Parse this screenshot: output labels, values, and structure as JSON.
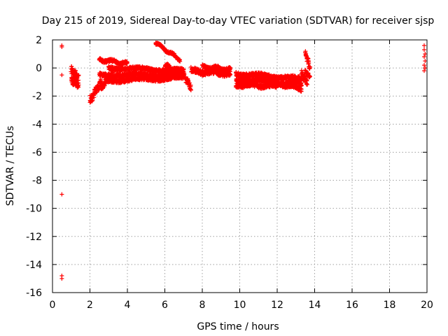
{
  "chart_data": {
    "type": "scatter",
    "title": "Day 215 of 2019, Sidereal Day-to-day VTEC variation (SDTVAR) for receiver sjsp",
    "xlabel": "GPS time / hours",
    "ylabel": "SDTVAR / TECUs",
    "xlim": [
      0,
      20
    ],
    "ylim": [
      -16,
      2
    ],
    "xticks": [
      "0",
      "2",
      "4",
      "6",
      "8",
      "10",
      "12",
      "14",
      "16",
      "18",
      "20"
    ],
    "yticks": [
      "2",
      "0",
      "-2",
      "-4",
      "-6",
      "-8",
      "-10",
      "-12",
      "-14",
      "-16"
    ],
    "grid": true,
    "marker": "+",
    "color": "#ff0000",
    "points": [
      [
        0.5,
        1.6
      ],
      [
        0.5,
        1.5
      ],
      [
        0.5,
        -0.5
      ],
      [
        0.5,
        -9.0
      ],
      [
        0.5,
        -14.8
      ],
      [
        0.5,
        -15.0
      ],
      [
        19.85,
        1.6
      ],
      [
        19.85,
        1.3
      ],
      [
        19.9,
        1.0
      ],
      [
        19.85,
        0.8
      ],
      [
        19.9,
        0.5
      ],
      [
        19.85,
        0.2
      ],
      [
        19.9,
        0.0
      ],
      [
        19.85,
        -0.2
      ]
    ],
    "segments": [
      {
        "x": [
          1.0,
          1.4
        ],
        "y": [
          -0.2,
          -0.8
        ],
        "jitter": 0.6
      },
      {
        "x": [
          1.0,
          1.4
        ],
        "y": [
          -0.9,
          -1.2
        ],
        "jitter": 0.4
      },
      {
        "x": [
          2.0,
          2.6
        ],
        "y": [
          -2.3,
          -1.0
        ],
        "jitter": 0.5
      },
      {
        "x": [
          2.6,
          3.2
        ],
        "y": [
          -1.4,
          -0.5
        ],
        "jitter": 0.4
      },
      {
        "x": [
          2.5,
          4.0
        ],
        "y": [
          0.6,
          0.3
        ],
        "jitter": 0.2
      },
      {
        "x": [
          3.0,
          7.0
        ],
        "y": [
          0.0,
          -0.2
        ],
        "jitter": 0.25
      },
      {
        "x": [
          2.5,
          7.0
        ],
        "y": [
          -0.5,
          -0.5
        ],
        "jitter": 0.25
      },
      {
        "x": [
          3.0,
          7.0
        ],
        "y": [
          -0.9,
          -0.7
        ],
        "jitter": 0.25
      },
      {
        "x": [
          5.5,
          6.8
        ],
        "y": [
          1.8,
          0.6
        ],
        "jitter": 0.15
      },
      {
        "x": [
          6.0,
          7.0
        ],
        "y": [
          0.2,
          -0.4
        ],
        "jitter": 0.2
      },
      {
        "x": [
          7.0,
          7.4
        ],
        "y": [
          -0.5,
          -1.4
        ],
        "jitter": 0.4
      },
      {
        "x": [
          7.4,
          9.5
        ],
        "y": [
          -0.2,
          -0.4
        ],
        "jitter": 0.4
      },
      {
        "x": [
          8.0,
          9.5
        ],
        "y": [
          0.1,
          -0.1
        ],
        "jitter": 0.2
      },
      {
        "x": [
          9.8,
          13.3
        ],
        "y": [
          -0.4,
          -0.8
        ],
        "jitter": 0.3
      },
      {
        "x": [
          9.8,
          13.3
        ],
        "y": [
          -0.8,
          -1.2
        ],
        "jitter": 0.3
      },
      {
        "x": [
          9.8,
          12.0
        ],
        "y": [
          -1.2,
          -1.3
        ],
        "jitter": 0.3
      },
      {
        "x": [
          11.5,
          13.3
        ],
        "y": [
          -1.0,
          -1.5
        ],
        "jitter": 0.2
      },
      {
        "x": [
          13.3,
          13.6
        ],
        "y": [
          -0.4,
          -1.0
        ],
        "jitter": 0.4
      },
      {
        "x": [
          13.5,
          13.75
        ],
        "y": [
          1.1,
          0.0
        ],
        "jitter": 0.3
      },
      {
        "x": [
          13.5,
          13.75
        ],
        "y": [
          -0.3,
          -0.6
        ],
        "jitter": 0.2
      }
    ]
  }
}
